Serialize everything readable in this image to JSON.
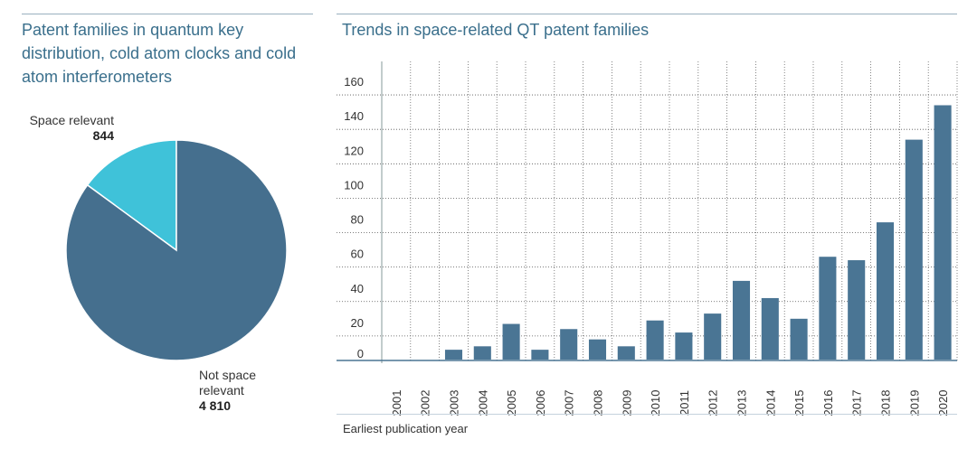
{
  "left": {
    "title_lines": [
      "Patent families in quantum key",
      "distribution, cold atom clocks and cold",
      "atom interferometers"
    ]
  },
  "right": {
    "title": "Trends in space-related QT patent families"
  },
  "chart_data": [
    {
      "type": "pie",
      "title": "Patent families in quantum key distribution, cold atom clocks and cold atom interferometers",
      "slices": [
        {
          "label": "Space relevant",
          "value": 844,
          "value_text": "844",
          "color": "#3fc2d9"
        },
        {
          "label": "Not space relevant",
          "label_lines": [
            "Not space",
            "relevant"
          ],
          "value": 4810,
          "value_text": "4 810",
          "color": "#456f8e"
        }
      ]
    },
    {
      "type": "bar",
      "title": "Trends in space-related QT patent families",
      "xlabel": "Earliest publication year",
      "ylabel": "",
      "ylim": [
        0,
        170
      ],
      "yticks": [
        0,
        20,
        40,
        60,
        80,
        100,
        120,
        140,
        160
      ],
      "categories": [
        "2001",
        "2002",
        "2003",
        "2004",
        "2005",
        "2006",
        "2007",
        "2008",
        "2009",
        "2010",
        "2011",
        "2012",
        "2013",
        "2014",
        "2015",
        "2016",
        "2017",
        "2018",
        "2019",
        "2020"
      ],
      "values": [
        6,
        5,
        12,
        14,
        27,
        12,
        24,
        18,
        14,
        29,
        22,
        33,
        52,
        42,
        30,
        66,
        64,
        86,
        134,
        154
      ],
      "bar_color": "#4a7594",
      "grid": true
    }
  ]
}
